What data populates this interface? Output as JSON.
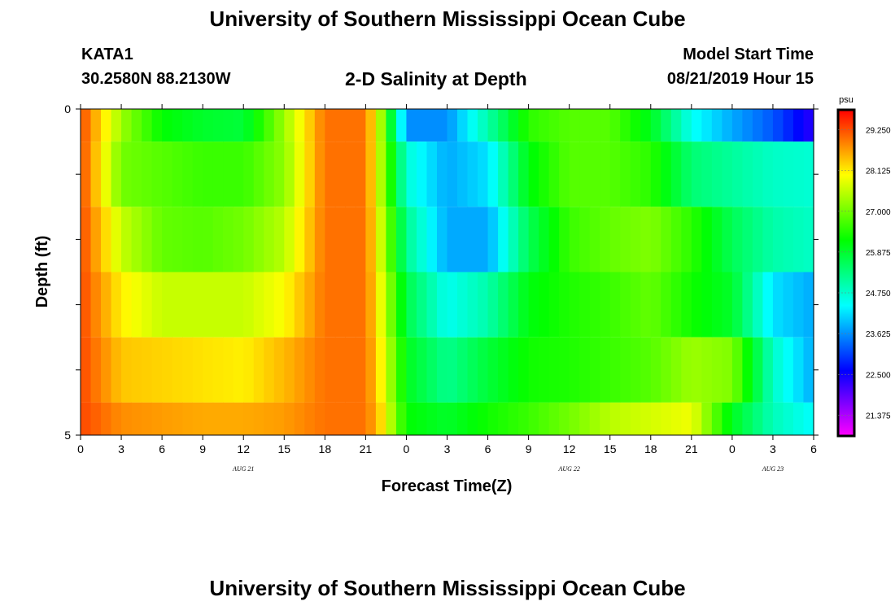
{
  "header": {
    "title": "University of Southern Mississippi Ocean Cube",
    "station_id": "KATA1",
    "coords": "30.2580N 88.2130W",
    "plot_title": "2-D Salinity at Depth",
    "start_label": "Model Start Time",
    "start_value": "08/21/2019 Hour 15"
  },
  "footer": {
    "title": "University of Southern Mississippi Ocean Cube"
  },
  "chart_data": {
    "type": "heatmap",
    "xlabel": "Forecast Time(Z)",
    "ylabel": "Depth (ft)",
    "x_tick_labels": [
      "0",
      "3",
      "6",
      "9",
      "12",
      "15",
      "18",
      "21",
      "0",
      "3",
      "6",
      "9",
      "12",
      "15",
      "18",
      "21",
      "0",
      "3",
      "6"
    ],
    "x_tick_hours": [
      0,
      3,
      6,
      9,
      12,
      15,
      18,
      21,
      24,
      27,
      30,
      33,
      36,
      39,
      42,
      45,
      48,
      51,
      54
    ],
    "day_labels": [
      {
        "text": "AUG 21",
        "hour": 12
      },
      {
        "text": "AUG 22",
        "hour": 36
      },
      {
        "text": "AUG 23",
        "hour": 51
      }
    ],
    "xlim": [
      0,
      54
    ],
    "ylim": [
      0,
      5
    ],
    "y_tick_labels": [
      "0",
      "5"
    ],
    "y_minor_ticks": [
      0,
      1,
      2,
      3,
      4,
      5
    ],
    "colorbar": {
      "unit": "psu",
      "min": 20.8,
      "max": 29.8,
      "labels": [
        "29.250",
        "28.125",
        "27.000",
        "25.875",
        "24.750",
        "23.625",
        "22.500",
        "21.375"
      ],
      "label_values": [
        29.25,
        28.125,
        27.0,
        25.875,
        24.75,
        23.625,
        22.5,
        21.375
      ]
    },
    "hours": [
      0,
      3,
      6,
      9,
      12,
      15,
      18,
      21,
      22,
      24,
      27,
      30,
      33,
      36,
      39,
      42,
      45,
      48,
      51,
      54
    ],
    "rows": [
      {
        "depth": [
          0,
          0.5
        ],
        "values": [
          29.3,
          27.3,
          26.2,
          25.9,
          25.8,
          27.3,
          29.0,
          29.0,
          27.6,
          23.6,
          23.6,
          25.0,
          26.5,
          26.8,
          26.8,
          26.0,
          24.5,
          23.8,
          23.2,
          22.3
        ]
      },
      {
        "depth": [
          0.5,
          1.5
        ],
        "values": [
          29.3,
          27.0,
          26.8,
          26.6,
          26.6,
          27.2,
          29.0,
          29.0,
          27.6,
          24.7,
          23.8,
          24.2,
          26.1,
          26.8,
          26.8,
          26.5,
          25.4,
          25.1,
          24.8,
          24.7
        ]
      },
      {
        "depth": [
          1.5,
          2.5
        ],
        "values": [
          29.3,
          27.6,
          26.9,
          26.8,
          27.0,
          27.5,
          29.0,
          29.0,
          27.8,
          25.2,
          23.8,
          23.8,
          25.6,
          26.6,
          26.9,
          27.1,
          26.5,
          25.6,
          25.0,
          24.8
        ]
      },
      {
        "depth": [
          2.5,
          3.5
        ],
        "values": [
          29.3,
          28.1,
          27.6,
          27.6,
          27.6,
          28.0,
          29.0,
          29.0,
          28.0,
          25.7,
          24.5,
          25.0,
          26.1,
          26.4,
          26.6,
          26.9,
          26.3,
          25.9,
          24.2,
          23.8
        ]
      },
      {
        "depth": [
          3.5,
          4.5
        ],
        "values": [
          29.3,
          28.4,
          28.3,
          28.2,
          28.1,
          28.5,
          29.0,
          29.0,
          28.2,
          26.0,
          25.2,
          25.8,
          26.3,
          26.4,
          26.6,
          26.8,
          27.3,
          27.1,
          24.8,
          23.8
        ]
      },
      {
        "depth": [
          4.5,
          5.0
        ],
        "values": [
          29.3,
          28.8,
          28.7,
          28.6,
          28.6,
          28.7,
          29.0,
          29.0,
          28.4,
          26.2,
          25.9,
          26.3,
          26.6,
          27.0,
          27.5,
          27.7,
          27.9,
          26.0,
          24.9,
          24.4
        ]
      }
    ]
  }
}
